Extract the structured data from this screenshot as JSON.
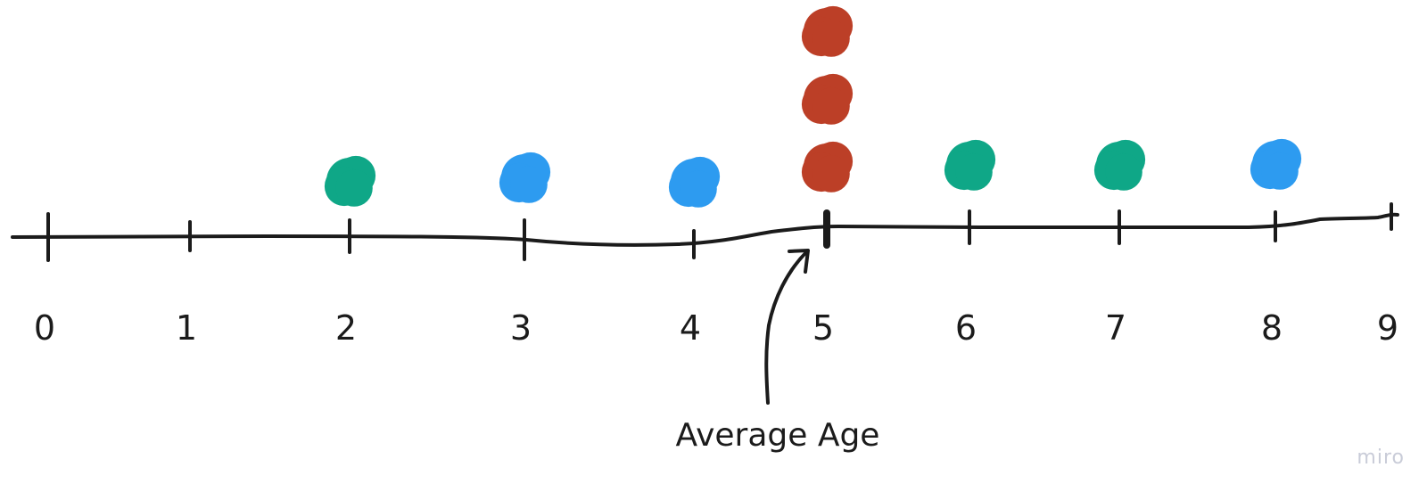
{
  "chart_data": {
    "type": "scatter",
    "title": "",
    "xlabel": "",
    "ylabel": "",
    "x_ticks": [
      "0",
      "1",
      "2",
      "3",
      "4",
      "5",
      "6",
      "7",
      "8",
      "9"
    ],
    "xlim": [
      0,
      9
    ],
    "grid": false,
    "points": [
      {
        "x": 2,
        "stack": 1,
        "color": "#0fa787"
      },
      {
        "x": 3,
        "stack": 1,
        "color": "#2d9bf0"
      },
      {
        "x": 4,
        "stack": 1,
        "color": "#2d9bf0"
      },
      {
        "x": 5,
        "stack": 1,
        "color": "#bc3f27"
      },
      {
        "x": 5,
        "stack": 2,
        "color": "#bc3f27"
      },
      {
        "x": 5,
        "stack": 3,
        "color": "#bc3f27"
      },
      {
        "x": 6,
        "stack": 1,
        "color": "#0fa787"
      },
      {
        "x": 7,
        "stack": 1,
        "color": "#0fa787"
      },
      {
        "x": 8,
        "stack": 1,
        "color": "#2d9bf0"
      }
    ],
    "annotation": {
      "text": "Average Age",
      "points_to": 5
    }
  },
  "watermark": "miro",
  "colors": {
    "ink": "#1b1b1b",
    "green": "#0fa787",
    "blue": "#2d9bf0",
    "red": "#bc3f27",
    "watermark": "#c9ccd8"
  }
}
